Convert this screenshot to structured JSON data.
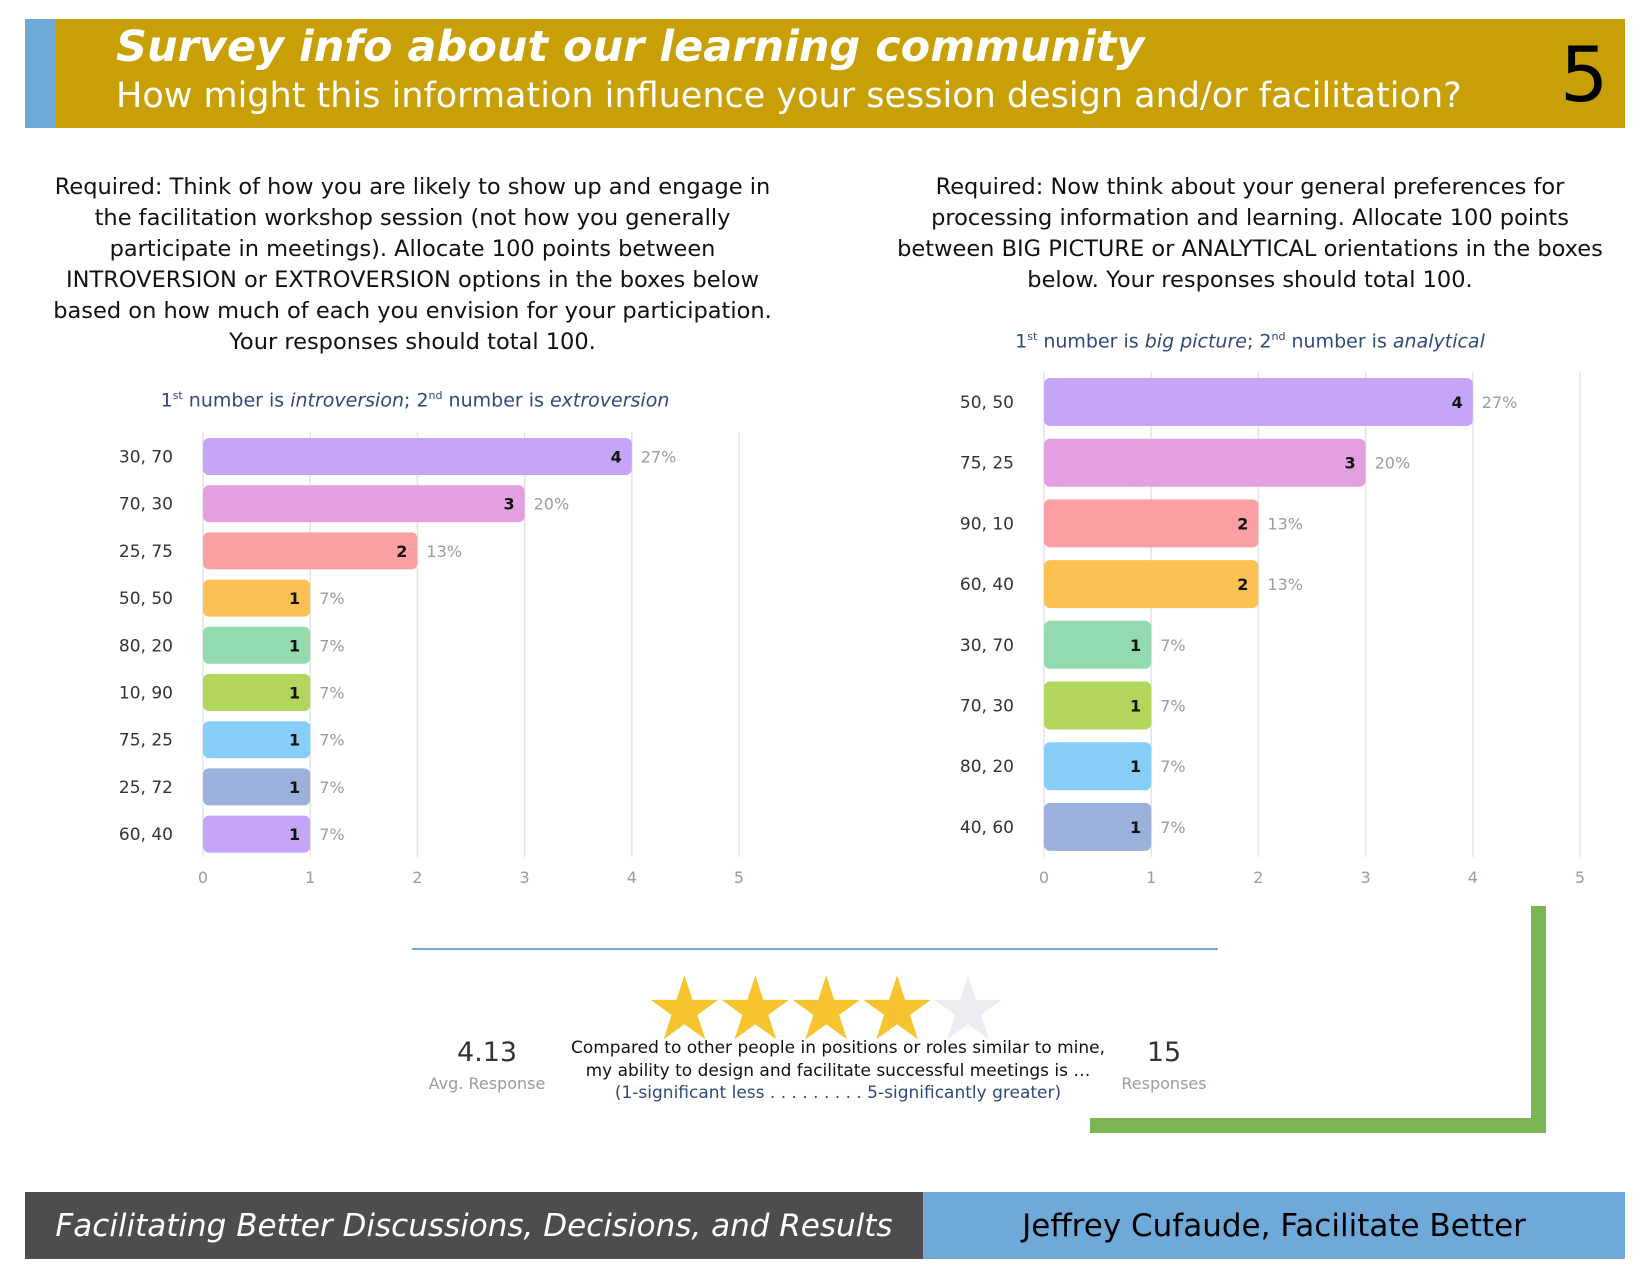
{
  "header": {
    "title": "Survey info about our learning community",
    "subtitle": "How might this information influence your session design and/or facilitation?",
    "page_number": "5",
    "colors": {
      "bar": "#c89f04",
      "accent": "#6ea9d9"
    }
  },
  "left": {
    "question": "Required: Think of how you are likely to show up and engage in the facilitation workshop session (not how you generally participate in meetings). Allocate 100 points between INTROVERSION or EXTROVERSION options in the boxes below based on how much of each you envision for your participation. Your responses should total 100.",
    "note": {
      "n1": "1",
      "sup1": "st",
      "t1": " number is ",
      "i1": "introversion",
      "t2": "; 2",
      "sup2": "nd",
      "t3": " number is ",
      "i2": "extroversion"
    }
  },
  "right": {
    "question": "Required: Now think about your general preferences for processing information and learning. Allocate 100 points between BIG PICTURE or ANALYTICAL orientations in the boxes below. Your responses should total 100.",
    "note": {
      "n1": "1",
      "sup1": "st",
      "t1": " number is ",
      "i1": "big picture",
      "t2": "; 2",
      "sup2": "nd",
      "t3": " number is ",
      "i2": "analytical"
    }
  },
  "chart_data": [
    {
      "type": "bar",
      "orientation": "horizontal",
      "categories": [
        "30, 70",
        "70, 30",
        "25, 75",
        "50, 50",
        "80, 20",
        "10, 90",
        "75, 25",
        "25, 72",
        "60, 40"
      ],
      "values": [
        4,
        3,
        2,
        1,
        1,
        1,
        1,
        1,
        1
      ],
      "percent_labels": [
        "27%",
        "20%",
        "13%",
        "7%",
        "7%",
        "7%",
        "7%",
        "7%",
        "7%"
      ],
      "colors": [
        "#c4a5f7",
        "#e2a0e0",
        "#f9a1a2",
        "#fdc052",
        "#93dbae",
        "#b2d65c",
        "#86cef8",
        "#9bb0da",
        "#c4a5f7"
      ],
      "xlim": [
        0,
        5
      ],
      "xticks": [
        "0",
        "1",
        "2",
        "3",
        "4",
        "5"
      ],
      "grid": true
    },
    {
      "type": "bar",
      "orientation": "horizontal",
      "categories": [
        "50, 50",
        "75, 25",
        "90, 10",
        "60, 40",
        "30, 70",
        "70, 30",
        "80, 20",
        "40, 60"
      ],
      "values": [
        4,
        3,
        2,
        2,
        1,
        1,
        1,
        1
      ],
      "percent_labels": [
        "27%",
        "20%",
        "13%",
        "13%",
        "7%",
        "7%",
        "7%",
        "7%"
      ],
      "colors": [
        "#c4a5f7",
        "#e2a0e0",
        "#f9a1a2",
        "#fdc052",
        "#93dbae",
        "#b2d65c",
        "#86cef8",
        "#9bb0da"
      ],
      "xlim": [
        0,
        5
      ],
      "xticks": [
        "0",
        "1",
        "2",
        "3",
        "4",
        "5"
      ],
      "grid": true
    }
  ],
  "rating": {
    "average": "4.13",
    "average_label": "Avg. Response",
    "stars_value": 4.13,
    "stars_max": 5,
    "question_line1": "Compared to other people in positions or roles similar to mine,",
    "question_line2": "my ability to design and facilitate successful meetings is …",
    "scale": "(1-significant less . . . . . . . . .  5-significantly greater)",
    "responses": "15",
    "responses_label": "Responses"
  },
  "footer": {
    "left": "Facilitating Better Discussions, Decisions, and Results",
    "right": "Jeffrey Cufaude, Facilitate Better"
  }
}
